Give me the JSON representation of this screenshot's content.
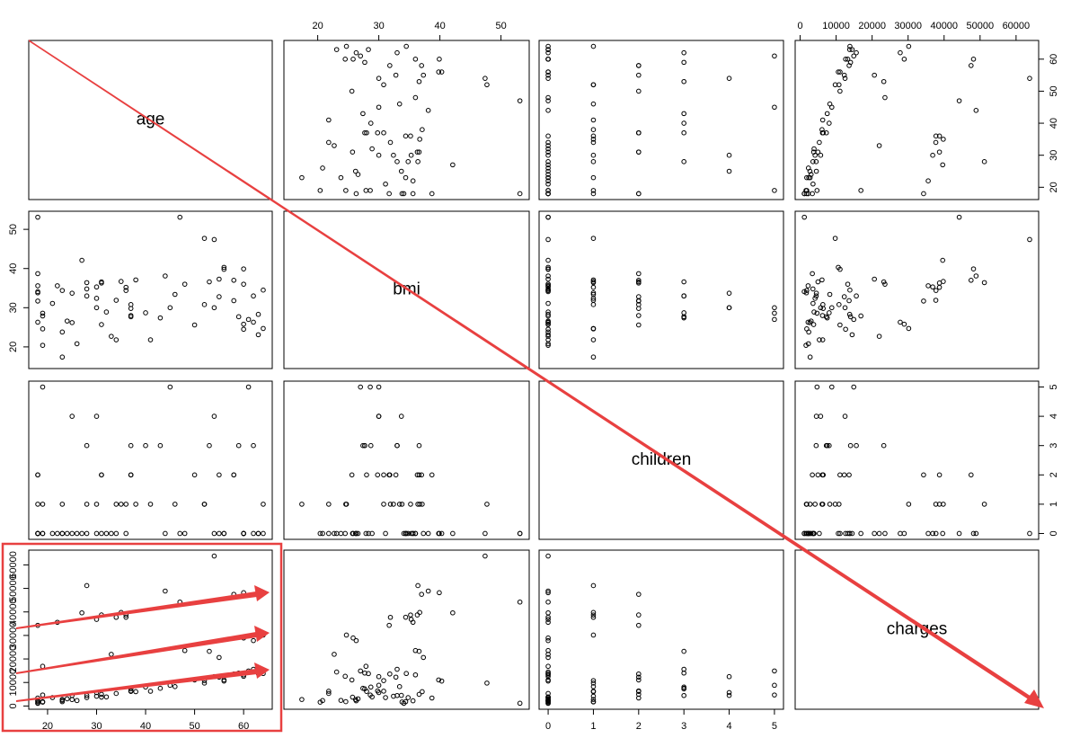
{
  "chart_data": {
    "type": "scatter_matrix",
    "variables": [
      {
        "name": "age",
        "lim": [
          16.16,
          65.84
        ],
        "ticks": [
          20,
          30,
          40,
          50,
          60
        ],
        "values": [
          19,
          18,
          28,
          33,
          32,
          31,
          46,
          37,
          37,
          60,
          25,
          62,
          23,
          56,
          27,
          19,
          52,
          23,
          56,
          30,
          60,
          30,
          18,
          34,
          37,
          59,
          63,
          55,
          23,
          31,
          22,
          18,
          19,
          63,
          28,
          19,
          62,
          26,
          35,
          60,
          24,
          31,
          41,
          37,
          38,
          55,
          18,
          28,
          60,
          36,
          18,
          21,
          48,
          36,
          40,
          58,
          58,
          18,
          53,
          34,
          43,
          25,
          64,
          52,
          44,
          54,
          64,
          50,
          45,
          47,
          18,
          61,
          54,
          30
        ]
      },
      {
        "name": "bmi",
        "lim": [
          14.47,
          54.62
        ],
        "ticks": [
          20,
          30,
          40,
          50
        ],
        "values": [
          27.9,
          33.8,
          33.0,
          22.7,
          28.9,
          25.7,
          33.4,
          27.7,
          29.8,
          25.8,
          26.2,
          26.3,
          34.4,
          39.8,
          42.1,
          24.6,
          30.8,
          23.8,
          40.3,
          35.3,
          36.0,
          32.4,
          34.1,
          31.9,
          28.0,
          27.7,
          23.1,
          32.8,
          17.4,
          36.3,
          35.6,
          26.3,
          28.6,
          28.3,
          36.4,
          20.4,
          33.0,
          20.8,
          36.7,
          39.9,
          26.6,
          36.6,
          21.8,
          30.8,
          37.1,
          37.3,
          38.7,
          34.8,
          24.5,
          35.2,
          35.6,
          31.1,
          36.0,
          34.4,
          28.7,
          37.0,
          31.8,
          31.7,
          36.6,
          21.8,
          27.4,
          33.7,
          24.7,
          47.7,
          38.1,
          30.0,
          34.5,
          25.6,
          30.0,
          53.1,
          53.1,
          27.0,
          47.4,
          30.0
        ]
      },
      {
        "name": "children",
        "lim": [
          -0.2,
          5.2
        ],
        "ticks": [
          0,
          1,
          2,
          3,
          4,
          5
        ],
        "values": [
          0,
          1,
          3,
          0,
          0,
          0,
          1,
          3,
          2,
          0,
          0,
          0,
          0,
          0,
          0,
          1,
          1,
          0,
          0,
          0,
          0,
          1,
          0,
          1,
          2,
          3,
          0,
          2,
          1,
          2,
          0,
          0,
          5,
          0,
          1,
          0,
          3,
          0,
          1,
          0,
          0,
          2,
          1,
          2,
          1,
          0,
          2,
          0,
          0,
          1,
          0,
          0,
          0,
          0,
          3,
          2,
          2,
          2,
          3,
          0,
          3,
          4,
          1,
          1,
          0,
          4,
          0,
          2,
          5,
          0,
          0,
          5,
          0,
          4
        ]
      },
      {
        "name": "charges",
        "lim": [
          -1384,
          66276
        ],
        "ticks": [
          0,
          10000,
          20000,
          30000,
          40000,
          50000,
          60000
        ],
        "values": [
          16885,
          1726,
          4449,
          21984,
          3867,
          3757,
          8241,
          7282,
          6406,
          28923,
          2721,
          27809,
          1827,
          11091,
          39612,
          1837,
          10797,
          2395,
          10602,
          36837,
          13229,
          4150,
          1137,
          37702,
          6204,
          14001,
          14451,
          12269,
          2775,
          38711,
          35586,
          2198,
          4688,
          13770,
          51195,
          1625,
          15612,
          2302,
          39774,
          48173,
          3046,
          4949,
          6273,
          6313,
          6079,
          20630,
          3394,
          3556,
          12630,
          38709,
          2211,
          3580,
          23568,
          37743,
          8060,
          47497,
          13607,
          34303,
          23245,
          5328,
          7527,
          4504,
          30166,
          9748,
          48885,
          12479,
          13822,
          11070,
          8800,
          44202,
          1164,
          14900,
          63770,
          5700
        ]
      }
    ]
  }
}
